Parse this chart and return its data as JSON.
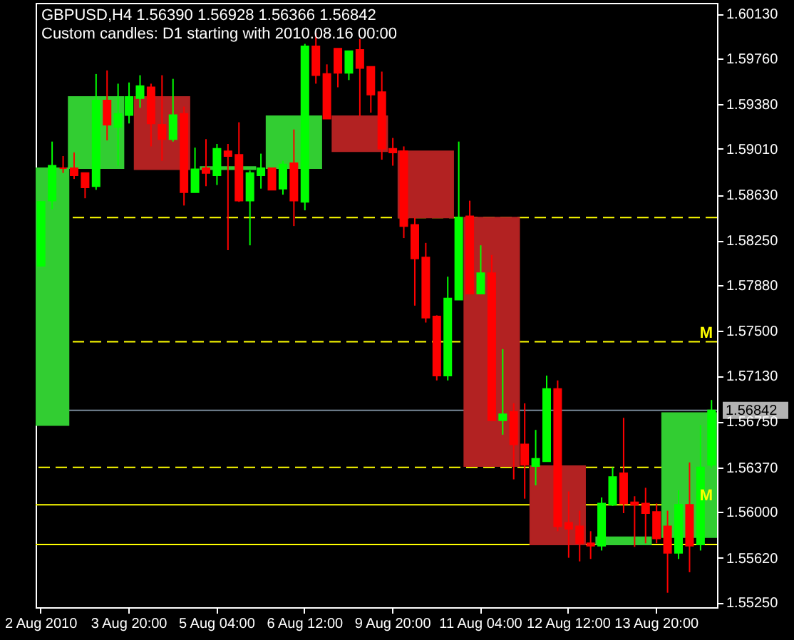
{
  "chart_data": {
    "type": "candlestick",
    "title": "GBPUSD,H4  1.56390 1.56928 1.56366 1.56842",
    "subtitle": "Custom candles: D1 starting with 2010.08.16 00:00",
    "categories": [
      "2 Aug 2010",
      null,
      null,
      null,
      null,
      null,
      null,
      null,
      "3 Aug 20:00",
      null,
      null,
      null,
      null,
      null,
      null,
      null,
      "5 Aug 04:00",
      null,
      null,
      null,
      null,
      null,
      null,
      null,
      "6 Aug 12:00",
      null,
      null,
      null,
      null,
      null,
      null,
      null,
      "9 Aug 20:00",
      null,
      null,
      null,
      null,
      null,
      null,
      null,
      "11 Aug 04:00",
      null,
      null,
      null,
      null,
      null,
      null,
      null,
      "12 Aug 12:00",
      null,
      null,
      null,
      null,
      null,
      null,
      null,
      "13 Aug 20:00",
      null,
      null,
      null,
      null,
      null
    ],
    "ylim": [
      1.5521,
      1.6022
    ],
    "yticks": [
      {
        "value": 1.6013,
        "label": "1.60130"
      },
      {
        "value": 1.5976,
        "label": "1.59760"
      },
      {
        "value": 1.5938,
        "label": "1.59380"
      },
      {
        "value": 1.5901,
        "label": "1.59010"
      },
      {
        "value": 1.5863,
        "label": "1.58630"
      },
      {
        "value": 1.5825,
        "label": "1.58250"
      },
      {
        "value": 1.5788,
        "label": "1.57880"
      },
      {
        "value": 1.575,
        "label": "1.57500"
      },
      {
        "value": 1.5713,
        "label": "1.57130"
      },
      {
        "value": 1.5675,
        "label": "1.56750"
      },
      {
        "value": 1.5637,
        "label": "1.56370"
      },
      {
        "value": 1.56,
        "label": "1.56000"
      },
      {
        "value": 1.5562,
        "label": "1.55620"
      },
      {
        "value": 1.5525,
        "label": "1.55250"
      }
    ],
    "series": [
      {
        "ohlc": [
          [
            1.5672,
            1.5885,
            1.5672,
            1.5885
          ],
          null,
          null,
          null,
          null,
          [
            1.5885,
            1.5944,
            1.5885,
            1.5944
          ],
          null,
          null,
          null,
          null,
          null,
          [
            1.5944,
            1.5944,
            1.5884,
            1.5884
          ],
          null,
          null,
          null,
          null,
          null,
          [
            1.5884,
            1.5886,
            1.5884,
            1.5886
          ],
          null,
          null,
          null,
          null,
          null,
          [
            1.5885,
            1.5928,
            1.5885,
            1.5928
          ],
          null,
          null,
          null,
          null,
          null,
          [
            1.5928,
            1.5928,
            1.5899,
            1.5899
          ],
          null,
          null,
          null,
          null,
          null,
          [
            1.5899,
            1.5899,
            1.5844,
            1.5844
          ],
          null,
          null,
          null,
          null,
          null,
          [
            1.5844,
            1.5844,
            1.5638,
            1.5638
          ],
          null,
          null,
          null,
          null,
          null,
          [
            1.5638,
            1.5638,
            1.5573,
            1.5573
          ],
          null,
          null,
          null,
          null,
          null,
          [
            1.5573,
            1.5579,
            1.5573,
            1.5579
          ],
          null,
          null,
          null,
          null,
          null,
          [
            1.5579,
            1.5682,
            1.5579,
            1.5682
          ],
          null,
          null
        ],
        "colors": [
          "#32cd32",
          null,
          null,
          null,
          null,
          "#32cd32",
          null,
          null,
          null,
          null,
          null,
          "#b22222",
          null,
          null,
          null,
          null,
          null,
          "#32cd32",
          null,
          null,
          null,
          null,
          null,
          "#32cd32",
          null,
          null,
          null,
          null,
          null,
          "#b22222",
          null,
          null,
          null,
          null,
          null,
          "#b22222",
          null,
          null,
          null,
          null,
          null,
          "#b22222",
          null,
          null,
          null,
          null,
          null,
          "#b22222",
          null,
          null,
          null,
          null,
          null,
          "#32cd32",
          null,
          null,
          null,
          null,
          null,
          "#32cd32",
          null,
          null
        ]
      },
      {
        "ohlc": [
          [
            1.5804,
            1.5857,
            1.5804,
            1.5857
          ],
          [
            1.5858,
            1.5907,
            1.5851,
            1.5887
          ],
          [
            1.5885,
            1.5895,
            1.5881,
            1.5885
          ],
          [
            1.5885,
            1.5898,
            1.5876,
            1.5879
          ],
          [
            1.5881,
            1.5881,
            1.586,
            1.5869
          ],
          [
            1.587,
            1.5963,
            1.5867,
            1.5941
          ],
          [
            1.5941,
            1.5966,
            1.5908,
            1.5921
          ],
          [
            1.5919,
            1.5955,
            1.5887,
            1.593
          ],
          [
            1.5929,
            1.5956,
            1.5922,
            1.5944
          ],
          [
            1.5943,
            1.5962,
            1.5935,
            1.5953
          ],
          [
            1.5952,
            1.5955,
            1.5903,
            1.5922
          ],
          [
            1.5921,
            1.5962,
            1.5891,
            1.5909
          ],
          [
            1.5909,
            1.5959,
            1.5907,
            1.5929
          ],
          [
            1.593,
            1.5936,
            1.5854,
            1.5865
          ],
          [
            1.5865,
            1.5902,
            1.5865,
            1.5884
          ],
          [
            1.5885,
            1.5909,
            1.587,
            1.5881
          ],
          [
            1.5879,
            1.5905,
            1.5871,
            1.5901
          ],
          [
            1.5899,
            1.5905,
            1.5817,
            1.5895
          ],
          [
            1.5896,
            1.5923,
            1.5857,
            1.5858
          ],
          [
            1.5858,
            1.5883,
            1.5821,
            1.5881
          ],
          [
            1.5879,
            1.5897,
            1.5868,
            1.5885
          ],
          [
            1.5885,
            1.5885,
            1.5867,
            1.5867
          ],
          [
            1.5868,
            1.5891,
            1.5863,
            1.5888
          ],
          [
            1.5889,
            1.5917,
            1.5837,
            1.5858
          ],
          [
            1.5857,
            1.5988,
            1.585,
            1.5986
          ],
          [
            1.5986,
            1.5997,
            1.5955,
            1.5962
          ],
          [
            1.5963,
            1.5971,
            1.5926,
            1.5926
          ],
          [
            1.5984,
            1.5984,
            1.5952,
            1.5964
          ],
          [
            1.5964,
            1.5982,
            1.5958,
            1.5982
          ],
          [
            1.5983,
            1.5992,
            1.5928,
            1.5968
          ],
          [
            1.5969,
            1.5969,
            1.5931,
            1.5946
          ],
          [
            1.5948,
            1.5965,
            1.5892,
            1.5901
          ],
          [
            1.5901,
            1.591,
            1.5887,
            1.5898
          ],
          [
            1.5899,
            1.5903,
            1.5827,
            1.5837
          ],
          [
            1.5838,
            1.5844,
            1.5771,
            1.581
          ],
          [
            1.5811,
            1.5823,
            1.5757,
            1.5761
          ],
          [
            1.5762,
            1.5763,
            1.5709,
            1.5713
          ],
          [
            1.5713,
            1.5795,
            1.5709,
            1.5777
          ],
          [
            1.5776,
            1.5907,
            1.5776,
            1.5844
          ],
          [
            1.5845,
            1.5858,
            1.5781,
            1.5781
          ],
          [
            1.5781,
            1.5821,
            1.5781,
            1.5798
          ],
          [
            1.5798,
            1.5813,
            1.5676,
            1.5676
          ],
          [
            1.5676,
            1.5735,
            1.5664,
            1.5681
          ],
          [
            1.5683,
            1.569,
            1.5627,
            1.5656
          ],
          [
            1.5656,
            1.569,
            1.5611,
            1.5639
          ],
          [
            1.5638,
            1.5668,
            1.5622,
            1.5644
          ],
          [
            1.5642,
            1.5713,
            1.5642,
            1.5702
          ],
          [
            1.5702,
            1.5709,
            1.5584,
            1.5588
          ],
          [
            1.5591,
            1.5617,
            1.5562,
            1.5586
          ],
          [
            1.5588,
            1.5601,
            1.5559,
            1.5574
          ],
          [
            1.5574,
            1.5584,
            1.5561,
            1.5572
          ],
          [
            1.5572,
            1.5612,
            1.5568,
            1.5607
          ],
          [
            1.5606,
            1.5637,
            1.5605,
            1.5629
          ],
          [
            1.5632,
            1.5678,
            1.5599,
            1.5607
          ],
          [
            1.5608,
            1.5613,
            1.5571,
            1.5606
          ],
          [
            1.5607,
            1.562,
            1.5574,
            1.5599
          ],
          [
            1.56,
            1.5607,
            1.5574,
            1.5578
          ],
          [
            1.5588,
            1.5601,
            1.5533,
            1.5566
          ],
          [
            1.5566,
            1.5618,
            1.5561,
            1.5606
          ],
          [
            1.5606,
            1.5641,
            1.555,
            1.5572
          ],
          [
            1.5573,
            1.5672,
            1.5568,
            1.5637
          ],
          [
            1.5639,
            1.56928,
            1.56366,
            1.56842
          ]
        ],
        "colors": [
          "#00ff00",
          "#00ff00",
          "#ff0000",
          "#ff0000",
          "#ff0000",
          "#00ff00",
          "#ff0000",
          "#00ff00",
          "#00ff00",
          "#00ff00",
          "#ff0000",
          "#ff0000",
          "#00ff00",
          "#ff0000",
          "#00ff00",
          "#ff0000",
          "#00ff00",
          "#ff0000",
          "#ff0000",
          "#00ff00",
          "#00ff00",
          "#ff0000",
          "#00ff00",
          "#ff0000",
          "#00ff00",
          "#ff0000",
          "#ff0000",
          "#ff0000",
          "#00ff00",
          "#ff0000",
          "#ff0000",
          "#ff0000",
          "#ff0000",
          "#ff0000",
          "#ff0000",
          "#ff0000",
          "#ff0000",
          "#00ff00",
          "#00ff00",
          "#ff0000",
          "#00ff00",
          "#ff0000",
          "#00ff00",
          "#ff0000",
          "#ff0000",
          "#00ff00",
          "#00ff00",
          "#ff0000",
          "#ff0000",
          "#ff0000",
          "#ff0000",
          "#00ff00",
          "#00ff00",
          "#ff0000",
          "#ff0000",
          "#ff0000",
          "#ff0000",
          "#ff0000",
          "#00ff00",
          "#ff0000",
          "#00ff00",
          "#00ff00"
        ]
      }
    ],
    "ref_lines": [
      {
        "axis": "y",
        "value": 1.5844,
        "label": null,
        "color": "#ffff00",
        "line_style": "dashed"
      },
      {
        "axis": "y",
        "value": 1.5741,
        "label": "M",
        "color": "#ffff00",
        "line_style": "dashed"
      },
      {
        "axis": "y",
        "value": 1.5637,
        "label": null,
        "color": "#ffff00",
        "line_style": "dashed"
      },
      {
        "axis": "y",
        "value": 1.5606,
        "label": "M",
        "color": "#ffff00",
        "line_style": "solid"
      },
      {
        "axis": "y",
        "value": 1.5573,
        "label": null,
        "color": "#ffff00",
        "line_style": "solid"
      },
      {
        "axis": "y",
        "value": 1.56842,
        "label": "1.56842",
        "color": "#778899",
        "line_style": "solid"
      }
    ],
    "grid": false
  }
}
